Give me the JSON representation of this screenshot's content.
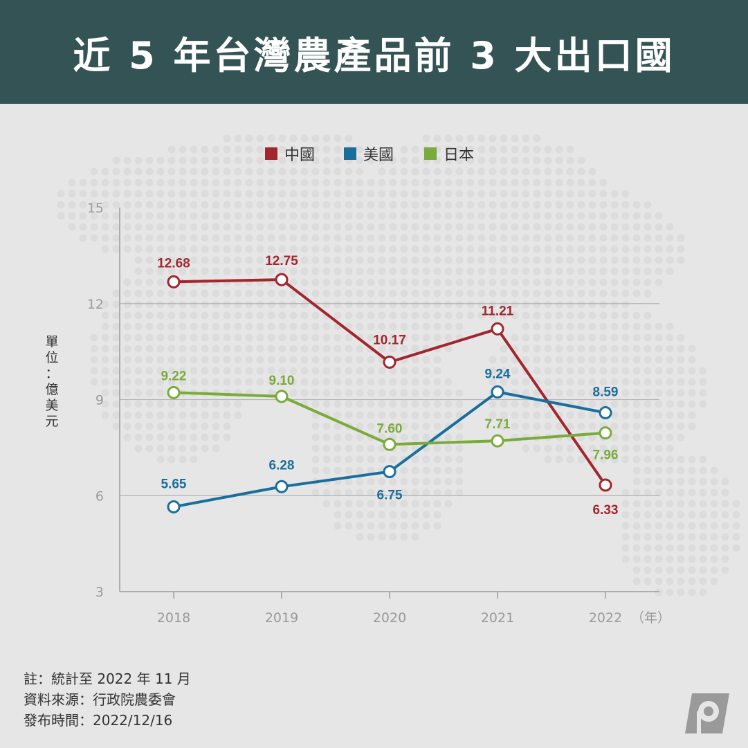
{
  "header": {
    "title": "近 5 年台灣農產品前 3 大出口國"
  },
  "chart_data": {
    "type": "line",
    "x": [
      "2018",
      "2019",
      "2020",
      "2021",
      "2022"
    ],
    "x_unit_suffix": "（年）",
    "ylabel": "單位：億美元",
    "ylim": [
      3,
      15
    ],
    "yticks": [
      3,
      6,
      9,
      12,
      15
    ],
    "grid": true,
    "legend_position": "top-center",
    "series": [
      {
        "name": "中國",
        "color": "#a1262e",
        "values": [
          12.68,
          12.75,
          10.17,
          11.21,
          6.33
        ],
        "labels": [
          "12.68",
          "12.75",
          "10.17",
          "11.21",
          "6.33"
        ]
      },
      {
        "name": "美國",
        "color": "#1a6e9b",
        "values": [
          5.65,
          6.28,
          6.75,
          9.24,
          8.59
        ],
        "labels": [
          "5.65",
          "6.28",
          "6.75",
          "9.24",
          "8.59"
        ]
      },
      {
        "name": "日本",
        "color": "#7aab3a",
        "values": [
          9.22,
          9.1,
          7.6,
          7.71,
          7.96
        ],
        "labels": [
          "9.22",
          "9.10",
          "7.60",
          "7.71",
          "7.96"
        ]
      }
    ]
  },
  "notes": {
    "line1": "註：統計至 2022 年 11 月",
    "line2": "資料來源：行政院農委會",
    "line3": "發布時間：2022/12/16"
  },
  "logo_icon": "publisher-p-logo-icon"
}
